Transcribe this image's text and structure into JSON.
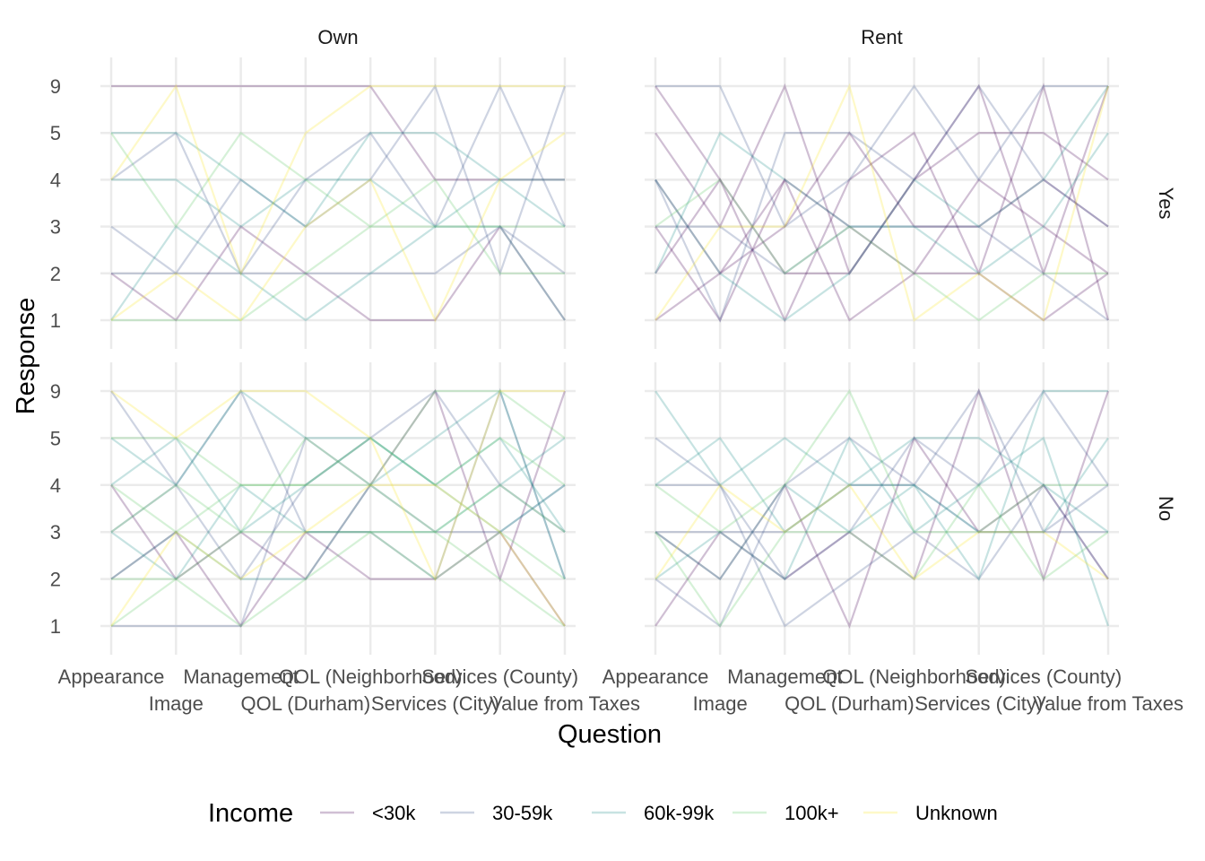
{
  "chart_data": {
    "type": "parallel-coordinates",
    "xlabel": "Question",
    "ylabel": "Response",
    "questions": [
      "Appearance",
      "Image",
      "Management",
      "QOL (Durham)",
      "QOL (Neighborhood)",
      "Services (City)",
      "Services (County)",
      "Value from Taxes"
    ],
    "response_levels": [
      "1",
      "2",
      "3",
      "4",
      "5",
      "9"
    ],
    "facet_columns": [
      "Own",
      "Rent"
    ],
    "facet_rows": [
      "Yes",
      "No"
    ],
    "legend": {
      "title": "Income",
      "position": "bottom",
      "entries": [
        {
          "label": "<30k",
          "color": "#440154"
        },
        {
          "label": "30-59k",
          "color": "#3B528B"
        },
        {
          "label": "60k-99k",
          "color": "#21908C"
        },
        {
          "label": "100k+",
          "color": "#5DC863"
        },
        {
          "label": "Unknown",
          "color": "#FDE725"
        }
      ]
    },
    "line_alpha": 0.25,
    "grid": true,
    "series": [
      {
        "panel": "Own|Yes",
        "income": "<30k",
        "values": [
          "9",
          "9",
          "9",
          "9",
          "9",
          "4",
          "4",
          "4"
        ]
      },
      {
        "panel": "Own|Yes",
        "income": "<30k",
        "values": [
          "2",
          "1",
          "3",
          "2",
          "1",
          "1",
          "3",
          "1"
        ]
      },
      {
        "panel": "Own|Yes",
        "income": "30-59k",
        "values": [
          "4",
          "5",
          "2",
          "4",
          "5",
          "3",
          "9",
          "3"
        ]
      },
      {
        "panel": "Own|Yes",
        "income": "30-59k",
        "values": [
          "3",
          "2",
          "4",
          "3",
          "4",
          "9",
          "2",
          "9"
        ]
      },
      {
        "panel": "Own|Yes",
        "income": "30-59k",
        "values": [
          "2",
          "2",
          "2",
          "2",
          "2",
          "2",
          "3",
          "2"
        ]
      },
      {
        "panel": "Own|Yes",
        "income": "60k-99k",
        "values": [
          "5",
          "5",
          "4",
          "3",
          "5",
          "5",
          "4",
          "3"
        ]
      },
      {
        "panel": "Own|Yes",
        "income": "60k-99k",
        "values": [
          "4",
          "4",
          "3",
          "4",
          "4",
          "3",
          "3",
          "1"
        ]
      },
      {
        "panel": "Own|Yes",
        "income": "60k-99k",
        "values": [
          "1",
          "3",
          "2",
          "1",
          "2",
          "3",
          "4",
          "4"
        ]
      },
      {
        "panel": "Own|Yes",
        "income": "100k+",
        "values": [
          "5",
          "3",
          "5",
          "4",
          "3",
          "4",
          "2",
          "2"
        ]
      },
      {
        "panel": "Own|Yes",
        "income": "100k+",
        "values": [
          "1",
          "1",
          "1",
          "2",
          "3",
          "3",
          "3",
          "3"
        ]
      },
      {
        "panel": "Own|Yes",
        "income": "Unknown",
        "values": [
          "4",
          "9",
          "2",
          "5",
          "9",
          "9",
          "9",
          "9"
        ]
      },
      {
        "panel": "Own|Yes",
        "income": "Unknown",
        "values": [
          "1",
          "2",
          "1",
          "3",
          "4",
          "1",
          "4",
          "5"
        ]
      },
      {
        "panel": "Rent|Yes",
        "income": "<30k",
        "values": [
          "5",
          "3",
          "9",
          "2",
          "4",
          "9",
          "2",
          "9"
        ]
      },
      {
        "panel": "Rent|Yes",
        "income": "<30k",
        "values": [
          "3",
          "1",
          "4",
          "3",
          "2",
          "4",
          "3",
          "2"
        ]
      },
      {
        "panel": "Rent|Yes",
        "income": "<30k",
        "values": [
          "2",
          "4",
          "1",
          "4",
          "5",
          "2",
          "9",
          "1"
        ]
      },
      {
        "panel": "Rent|Yes",
        "income": "<30k",
        "values": [
          "4",
          "2",
          "3",
          "5",
          "3",
          "3",
          "4",
          "3"
        ]
      },
      {
        "panel": "Rent|Yes",
        "income": "<30k",
        "values": [
          "9",
          "4",
          "2",
          "2",
          "4",
          "5",
          "5",
          "4"
        ]
      },
      {
        "panel": "Rent|Yes",
        "income": "<30k",
        "values": [
          "1",
          "2",
          "4",
          "1",
          "2",
          "2",
          "1",
          "2"
        ]
      },
      {
        "panel": "Rent|Yes",
        "income": "30-59k",
        "values": [
          "9",
          "9",
          "3",
          "4",
          "9",
          "4",
          "9",
          "9"
        ]
      },
      {
        "panel": "Rent|Yes",
        "income": "30-59k",
        "values": [
          "3",
          "3",
          "2",
          "3",
          "3",
          "3",
          "2",
          "1"
        ]
      },
      {
        "panel": "Rent|Yes",
        "income": "30-59k",
        "values": [
          "4",
          "1",
          "5",
          "5",
          "4",
          "9",
          "4",
          "3"
        ]
      },
      {
        "panel": "Rent|Yes",
        "income": "60k-99k",
        "values": [
          "2",
          "5",
          "4",
          "3",
          "3",
          "2",
          "3",
          "5"
        ]
      },
      {
        "panel": "Rent|Yes",
        "income": "60k-99k",
        "values": [
          "4",
          "2",
          "1",
          "2",
          "4",
          "3",
          "4",
          "9"
        ]
      },
      {
        "panel": "Rent|Yes",
        "income": "100k+",
        "values": [
          "3",
          "4",
          "2",
          "3",
          "2",
          "1",
          "2",
          "2"
        ]
      },
      {
        "panel": "Rent|Yes",
        "income": "Unknown",
        "values": [
          "1",
          "3",
          "3",
          "9",
          "1",
          "2",
          "1",
          "9"
        ]
      },
      {
        "panel": "Own|No",
        "income": "<30k",
        "values": [
          "2",
          "3",
          "1",
          "3",
          "2",
          "2",
          "3",
          "1"
        ]
      },
      {
        "panel": "Own|No",
        "income": "<30k",
        "values": [
          "4",
          "2",
          "3",
          "2",
          "4",
          "9",
          "2",
          "9"
        ]
      },
      {
        "panel": "Own|No",
        "income": "30-59k",
        "values": [
          "3",
          "4",
          "2",
          "4",
          "5",
          "9",
          "4",
          "3"
        ]
      },
      {
        "panel": "Own|No",
        "income": "30-59k",
        "values": [
          "9",
          "4",
          "9",
          "3",
          "3",
          "2",
          "9",
          "2"
        ]
      },
      {
        "panel": "Own|No",
        "income": "30-59k",
        "values": [
          "1",
          "1",
          "1",
          "5",
          "4",
          "3",
          "3",
          "4"
        ]
      },
      {
        "panel": "Own|No",
        "income": "60k-99k",
        "values": [
          "4",
          "5",
          "3",
          "4",
          "5",
          "4",
          "5",
          "3"
        ]
      },
      {
        "panel": "Own|No",
        "income": "60k-99k",
        "values": [
          "3",
          "2",
          "4",
          "3",
          "3",
          "3",
          "4",
          "5"
        ]
      },
      {
        "panel": "Own|No",
        "income": "60k-99k",
        "values": [
          "2",
          "3",
          "2",
          "2",
          "4",
          "5",
          "9",
          "2"
        ]
      },
      {
        "panel": "Own|No",
        "income": "60k-99k",
        "values": [
          "5",
          "4",
          "9",
          "5",
          "5",
          "4",
          "3",
          "4"
        ]
      },
      {
        "panel": "Own|No",
        "income": "100k+",
        "values": [
          "4",
          "3",
          "4",
          "4",
          "5",
          "4",
          "5",
          "4"
        ]
      },
      {
        "panel": "Own|No",
        "income": "100k+",
        "values": [
          "3",
          "4",
          "3",
          "5",
          "4",
          "3",
          "4",
          "3"
        ]
      },
      {
        "panel": "Own|No",
        "income": "100k+",
        "values": [
          "2",
          "2",
          "3",
          "3",
          "3",
          "2",
          "3",
          "2"
        ]
      },
      {
        "panel": "Own|No",
        "income": "100k+",
        "values": [
          "5",
          "5",
          "4",
          "4",
          "4",
          "9",
          "9",
          "5"
        ]
      },
      {
        "panel": "Own|No",
        "income": "100k+",
        "values": [
          "1",
          "2",
          "1",
          "2",
          "3",
          "3",
          "2",
          "1"
        ]
      },
      {
        "panel": "Own|No",
        "income": "Unknown",
        "values": [
          "9",
          "5",
          "9",
          "9",
          "5",
          "2",
          "9",
          "9"
        ]
      },
      {
        "panel": "Own|No",
        "income": "Unknown",
        "values": [
          "1",
          "3",
          "2",
          "3",
          "4",
          "4",
          "3",
          "1"
        ]
      },
      {
        "panel": "Rent|No",
        "income": "<30k",
        "values": [
          "3",
          "2",
          "4",
          "1",
          "5",
          "3",
          "4",
          "2"
        ]
      },
      {
        "panel": "Rent|No",
        "income": "<30k",
        "values": [
          "1",
          "3",
          "2",
          "3",
          "2",
          "9",
          "2",
          "9"
        ]
      },
      {
        "panel": "Rent|No",
        "income": "30-59k",
        "values": [
          "4",
          "4",
          "2",
          "3",
          "5",
          "4",
          "9",
          "4"
        ]
      },
      {
        "panel": "Rent|No",
        "income": "30-59k",
        "values": [
          "3",
          "3",
          "3",
          "4",
          "4",
          "3",
          "3",
          "3"
        ]
      },
      {
        "panel": "Rent|No",
        "income": "30-59k",
        "values": [
          "5",
          "4",
          "1",
          "2",
          "3",
          "2",
          "4",
          "2"
        ]
      },
      {
        "panel": "Rent|No",
        "income": "30-59k",
        "values": [
          "2",
          "1",
          "4",
          "5",
          "4",
          "9",
          "3",
          "4"
        ]
      },
      {
        "panel": "Rent|No",
        "income": "60k-99k",
        "values": [
          "4",
          "5",
          "3",
          "4",
          "5",
          "5",
          "4",
          "3"
        ]
      },
      {
        "panel": "Rent|No",
        "income": "60k-99k",
        "values": [
          "3",
          "2",
          "4",
          "3",
          "4",
          "3",
          "3",
          "5"
        ]
      },
      {
        "panel": "Rent|No",
        "income": "60k-99k",
        "values": [
          "2",
          "3",
          "2",
          "5",
          "3",
          "4",
          "5",
          "1"
        ]
      },
      {
        "panel": "Rent|No",
        "income": "60k-99k",
        "values": [
          "9",
          "4",
          "5",
          "4",
          "4",
          "2",
          "9",
          "9"
        ]
      },
      {
        "panel": "Rent|No",
        "income": "100k+",
        "values": [
          "4",
          "3",
          "4",
          "9",
          "3",
          "3",
          "4",
          "4"
        ]
      },
      {
        "panel": "Rent|No",
        "income": "100k+",
        "values": [
          "3",
          "1",
          "3",
          "3",
          "2",
          "4",
          "2",
          "3"
        ]
      },
      {
        "panel": "Rent|No",
        "income": "Unknown",
        "values": [
          "2",
          "4",
          "3",
          "4",
          "2",
          "3",
          "3",
          "2"
        ]
      }
    ]
  }
}
